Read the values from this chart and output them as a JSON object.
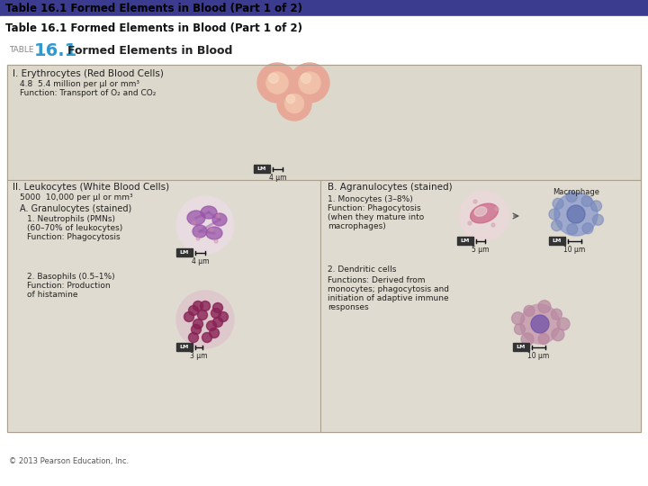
{
  "title_bar_color": "#3b3b8f",
  "title_text": "Table 16.1 Formed Elements in Blood (Part 1 of 2)",
  "title_text_color": "#000000",
  "title_fontsize": 9,
  "bg_color": "#ffffff",
  "table_bg": "#e0dbd0",
  "table_bg2": "#d8d3c8",
  "table_border": "#aaa090",
  "table_title": "TABLE",
  "table_number": "16.1",
  "table_heading": "Formed Elements in Blood",
  "section1_header": "I. Erythrocytes (Red Blood Cells)",
  "section1_line1": "4.8  5.4 million per µl or mm³",
  "section1_line2": "Function: Transport of O₂ and CO₂",
  "section1_scale": "4 µm",
  "section2_header": "II. Leukocytes (White Blood Cells)",
  "section2_count": "5000  10,000 per µl or mm³",
  "section2a_header": "A. Granulocytes (stained)",
  "section2a1_name": "1. Neutrophils (PMNs)",
  "section2a1_pct": "(60–70% of leukocytes)",
  "section2a1_func": "Function: Phagocytosis",
  "section2a1_scale": "4 µm",
  "section2a2_name": "2. Basophils (0.5–1%)",
  "section2a2_func1": "Function: Production",
  "section2a2_func2": "of histamine",
  "section2a2_scale": "3 µm",
  "section2b_header": "B. Agranulocytes (stained)",
  "section2b1_name": "1. Monocytes (3–8%)",
  "section2b1_func1": "Function: Phagocytosis",
  "section2b1_func2": "(when they mature into",
  "section2b1_func3": "macrophages)",
  "section2b1_scale1": "5 µm",
  "section2b1_scale2": "10 µm",
  "section2b1_macro": "Macrophage",
  "section2b2_name": "2. Dendritic cells",
  "section2b2_func1": "Functions: Derived from",
  "section2b2_func2": "monocytes; phagocytosis and",
  "section2b2_func3": "initiation of adaptive immune",
  "section2b2_func4": "responses",
  "section2b2_scale": "10 µm",
  "footer": "© 2013 Pearson Education, Inc.",
  "body_text_color": "#222222",
  "lm_box_color": "#333333",
  "lm_text_color": "#ffffff"
}
